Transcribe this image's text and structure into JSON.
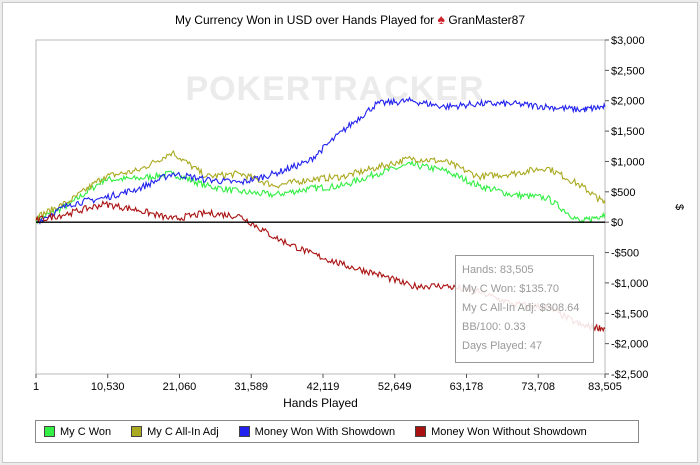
{
  "title_prefix": "My Currency Won in USD over Hands Played for",
  "player": "GranMaster87",
  "spade_icon": "♠",
  "watermark": "POKERTRACKER",
  "chart_data": {
    "type": "line",
    "title": "My Currency Won in USD over Hands Played for GranMaster87",
    "xlabel": "Hands Played",
    "ylabel": "$",
    "xlim": [
      1,
      83505
    ],
    "ylim": [
      -2500,
      3000
    ],
    "x_ticks": [
      1,
      10530,
      21060,
      31589,
      42119,
      52649,
      63178,
      73708,
      83505
    ],
    "x_tick_labels": [
      "1",
      "10,530",
      "21,060",
      "31,589",
      "42,119",
      "52,649",
      "63,178",
      "73,708",
      "83,505"
    ],
    "y_ticks": [
      3000,
      2500,
      2000,
      1500,
      1000,
      500,
      0,
      -500,
      -1000,
      -1500,
      -2000,
      -2500
    ],
    "y_tick_labels": [
      "$3,000",
      "$2,500",
      "$2,000",
      "$1,500",
      "$1,000",
      "$500",
      "$0",
      "-$500",
      "-$1,000",
      "-$1,500",
      "-$2,000",
      "-$2,500"
    ],
    "x": [
      1,
      5000,
      10000,
      15000,
      20000,
      25000,
      30000,
      35000,
      40000,
      45000,
      50000,
      55000,
      60000,
      65000,
      70000,
      75000,
      80000,
      83505
    ],
    "series": [
      {
        "name": "My C Won",
        "color": "#33ee44",
        "values": [
          30,
          300,
          700,
          720,
          800,
          600,
          500,
          450,
          550,
          600,
          800,
          950,
          850,
          600,
          450,
          400,
          0,
          135.7
        ]
      },
      {
        "name": "My C All-In Adj",
        "color": "#aaaa22",
        "values": [
          80,
          350,
          750,
          850,
          1150,
          750,
          800,
          600,
          700,
          750,
          900,
          1050,
          1000,
          750,
          800,
          900,
          600,
          308.64
        ]
      },
      {
        "name": "Money Won With Showdown",
        "color": "#2222ee",
        "values": [
          0,
          300,
          400,
          550,
          800,
          700,
          650,
          800,
          1000,
          1500,
          1950,
          2000,
          1900,
          1950,
          1950,
          1900,
          1850,
          1900
        ]
      },
      {
        "name": "Money Won Without Showdown",
        "color": "#aa1111",
        "values": [
          30,
          150,
          300,
          200,
          50,
          150,
          100,
          -250,
          -500,
          -700,
          -850,
          -1050,
          -1050,
          -1150,
          -1350,
          -1400,
          -1700,
          -1750
        ]
      }
    ],
    "tooltip": {
      "hands": "Hands: 83,505",
      "won": "My C Won: $135.70",
      "allin": "My C All-In Adj: $308.64",
      "bb100": "BB/100: 0.33",
      "days": "Days Played: 47"
    }
  }
}
